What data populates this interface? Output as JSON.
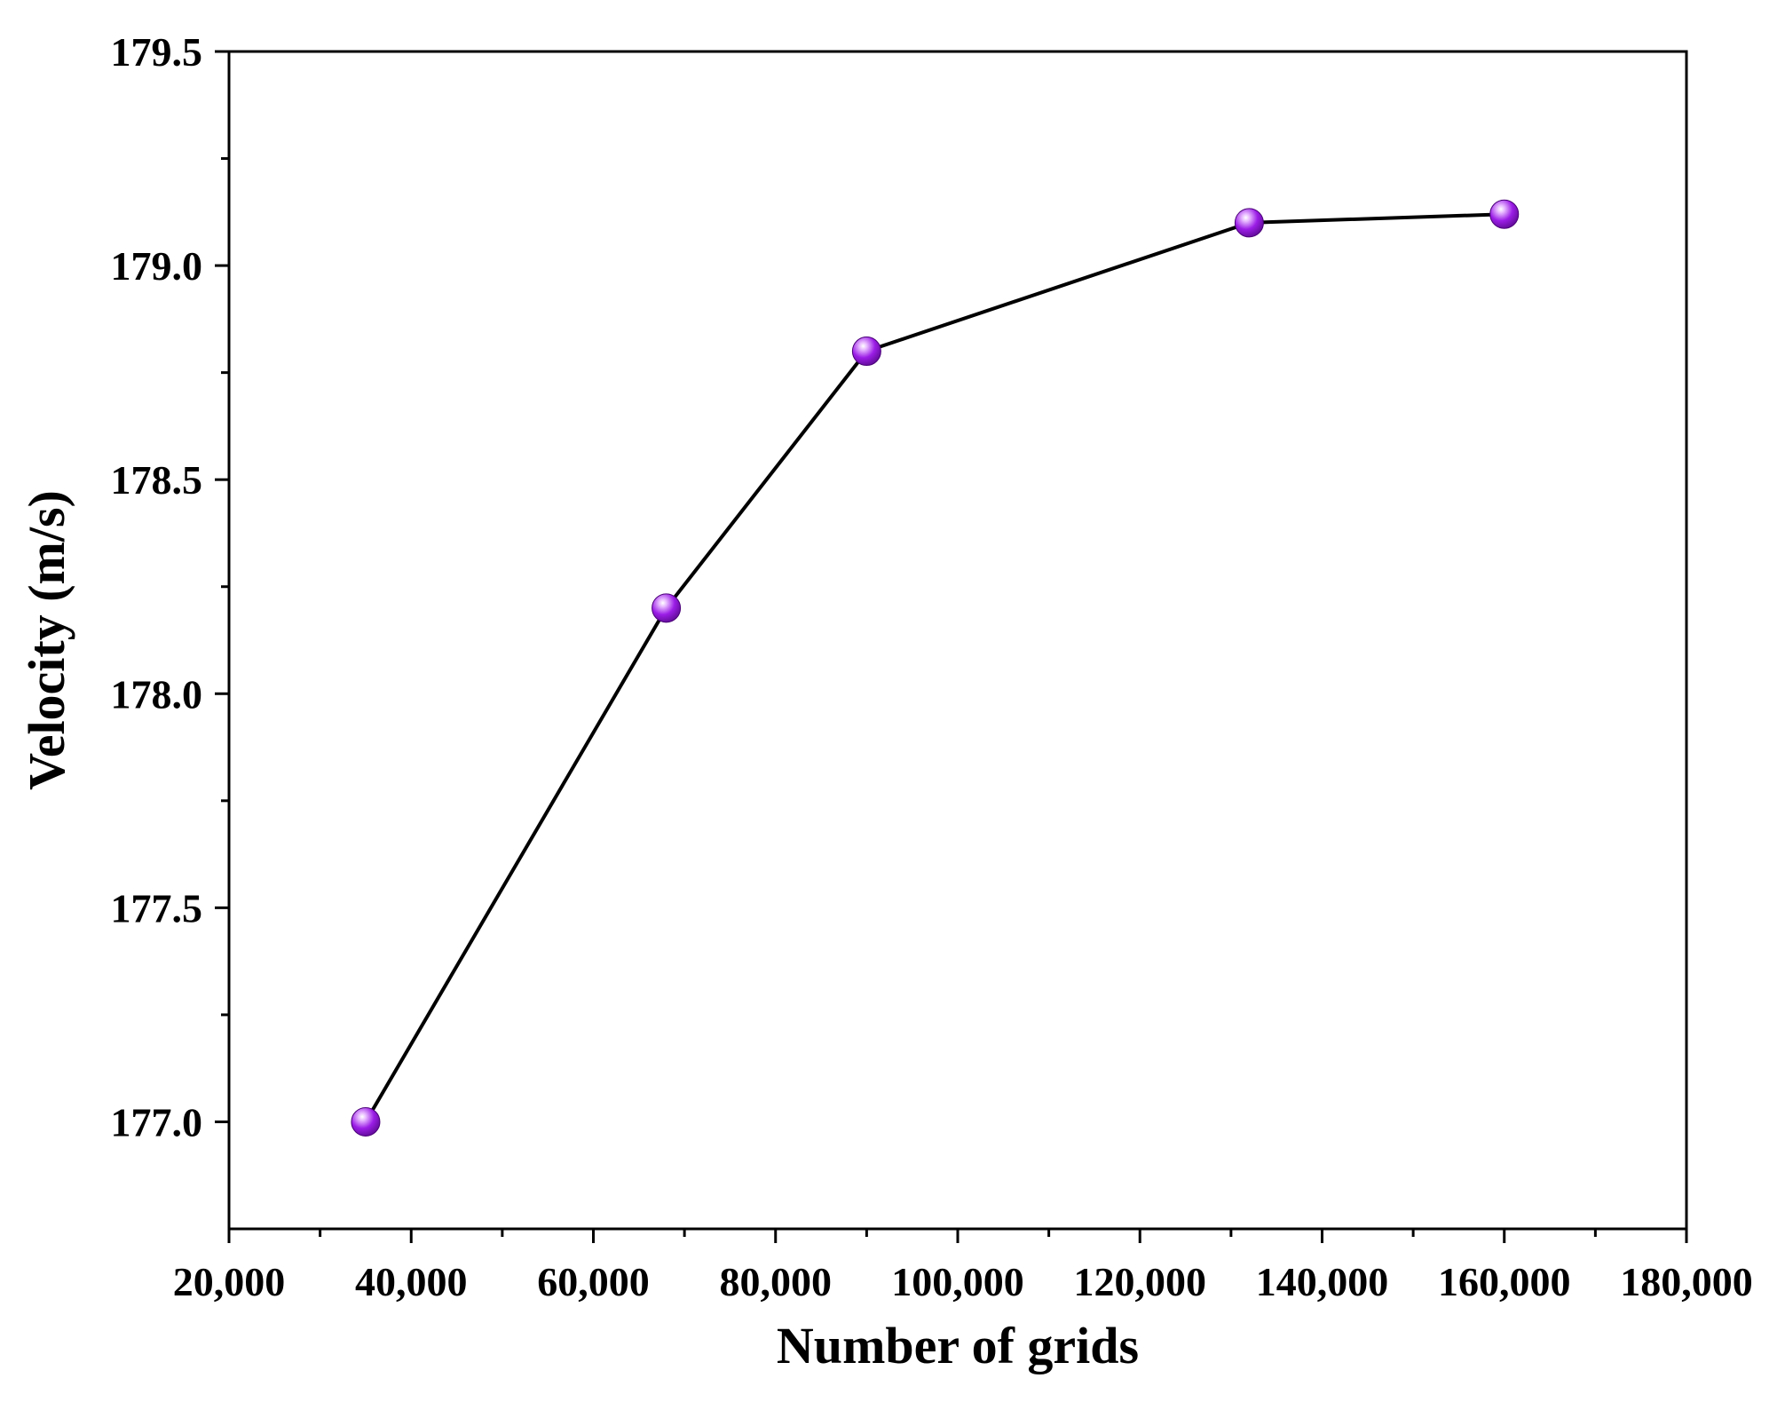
{
  "chart_data": {
    "type": "line",
    "title": "",
    "xlabel": "Number of grids",
    "ylabel": "Velocity (m/s)",
    "xlim": [
      20000,
      180000
    ],
    "ylim": [
      176.75,
      179.5
    ],
    "x_ticks": [
      20000,
      40000,
      60000,
      80000,
      100000,
      120000,
      140000,
      160000,
      180000
    ],
    "x_tick_labels": [
      "20,000",
      "40,000",
      "60,000",
      "80,000",
      "100,000",
      "120,000",
      "140,000",
      "160,000",
      "180,000"
    ],
    "y_ticks": [
      177.0,
      177.5,
      178.0,
      178.5,
      179.0,
      179.5
    ],
    "y_tick_labels": [
      "177.0",
      "177.5",
      "178.0",
      "178.5",
      "179.0",
      "179.5"
    ],
    "grid": false,
    "legend": "none",
    "series": [
      {
        "x": [
          35000,
          68000,
          90000,
          132000,
          160000
        ],
        "y": [
          177.0,
          178.2,
          178.8,
          179.1,
          179.12
        ],
        "line_color": "#000000",
        "marker_color": "#9b1de6"
      }
    ]
  }
}
